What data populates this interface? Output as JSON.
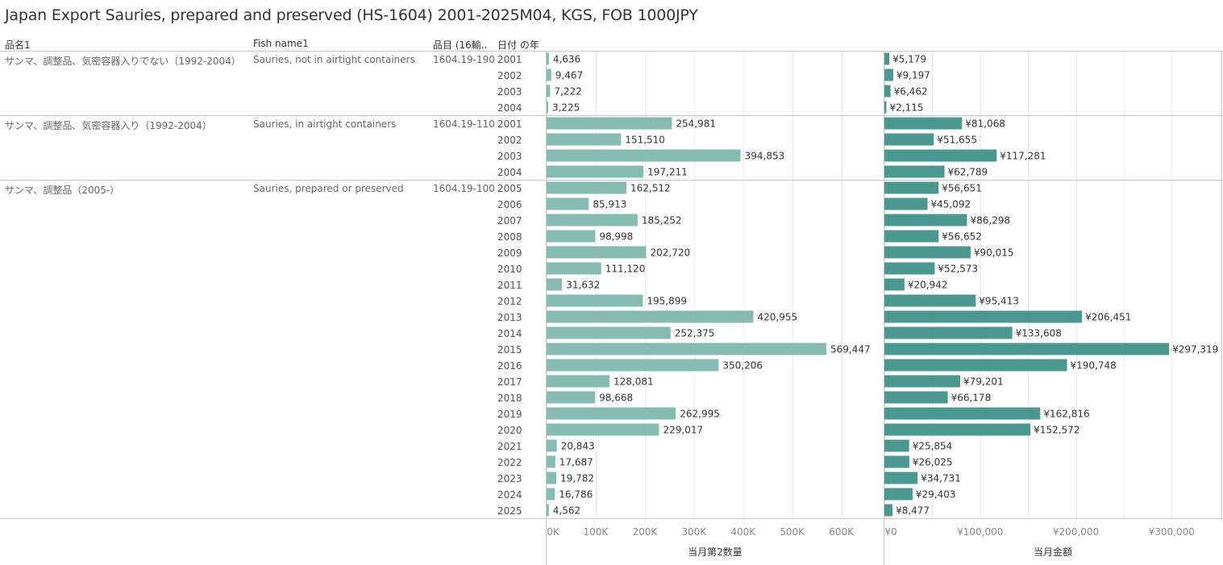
{
  "title": "Japan Export Sauries, prepared and preserved  (HS-1604) 2001-2025M04, KGS, FOB 1000JPY",
  "headers": {
    "name_jp": "品名1",
    "fish_name": "Fish name1",
    "code": "品目 (16輸..",
    "year": "日付 の年"
  },
  "colors": {
    "qty_bar": "#86bbb2",
    "value_bar": "#4a9890",
    "grid": "#ececec",
    "separator": "#c8c8c8"
  },
  "chart_data": {
    "type": "bar",
    "orientation": "horizontal",
    "groups": [
      {
        "name_jp": "サンマ、調整品、気密容器入りでない（1992-2004）",
        "fish_name": "Sauries, not in airtight containers",
        "code": "1604.19-190",
        "rows": [
          {
            "year": "2001",
            "qty": 4636,
            "qty_label": "4,636",
            "value": 5179,
            "value_label": "¥5,179"
          },
          {
            "year": "2002",
            "qty": 9467,
            "qty_label": "9,467",
            "value": 9197,
            "value_label": "¥9,197"
          },
          {
            "year": "2003",
            "qty": 7222,
            "qty_label": "7,222",
            "value": 6462,
            "value_label": "¥6,462"
          },
          {
            "year": "2004",
            "qty": 3225,
            "qty_label": "3,225",
            "value": 2115,
            "value_label": "¥2,115"
          }
        ]
      },
      {
        "name_jp": "サンマ、調整品、気密容器入り（1992-2004）",
        "fish_name": "Sauries, in airtight containers",
        "code": "1604.19-110",
        "rows": [
          {
            "year": "2001",
            "qty": 254981,
            "qty_label": "254,981",
            "value": 81068,
            "value_label": "¥81,068"
          },
          {
            "year": "2002",
            "qty": 151510,
            "qty_label": "151,510",
            "value": 51655,
            "value_label": "¥51,655"
          },
          {
            "year": "2003",
            "qty": 394853,
            "qty_label": "394,853",
            "value": 117281,
            "value_label": "¥117,281"
          },
          {
            "year": "2004",
            "qty": 197211,
            "qty_label": "197,211",
            "value": 62789,
            "value_label": "¥62,789"
          }
        ]
      },
      {
        "name_jp": "サンマ、調整品（2005-）",
        "fish_name": "Sauries, prepared or preserved",
        "code": "1604.19-100",
        "rows": [
          {
            "year": "2005",
            "qty": 162512,
            "qty_label": "162,512",
            "value": 56651,
            "value_label": "¥56,651"
          },
          {
            "year": "2006",
            "qty": 85913,
            "qty_label": "85,913",
            "value": 45092,
            "value_label": "¥45,092"
          },
          {
            "year": "2007",
            "qty": 185252,
            "qty_label": "185,252",
            "value": 86298,
            "value_label": "¥86,298"
          },
          {
            "year": "2008",
            "qty": 98998,
            "qty_label": "98,998",
            "value": 56652,
            "value_label": "¥56,652"
          },
          {
            "year": "2009",
            "qty": 202720,
            "qty_label": "202,720",
            "value": 90015,
            "value_label": "¥90,015"
          },
          {
            "year": "2010",
            "qty": 111120,
            "qty_label": "111,120",
            "value": 52573,
            "value_label": "¥52,573"
          },
          {
            "year": "2011",
            "qty": 31632,
            "qty_label": "31,632",
            "value": 20942,
            "value_label": "¥20,942"
          },
          {
            "year": "2012",
            "qty": 195899,
            "qty_label": "195,899",
            "value": 95413,
            "value_label": "¥95,413"
          },
          {
            "year": "2013",
            "qty": 420955,
            "qty_label": "420,955",
            "value": 206451,
            "value_label": "¥206,451"
          },
          {
            "year": "2014",
            "qty": 252375,
            "qty_label": "252,375",
            "value": 133608,
            "value_label": "¥133,608"
          },
          {
            "year": "2015",
            "qty": 569447,
            "qty_label": "569,447",
            "value": 297319,
            "value_label": "¥297,319"
          },
          {
            "year": "2016",
            "qty": 350206,
            "qty_label": "350,206",
            "value": 190748,
            "value_label": "¥190,748"
          },
          {
            "year": "2017",
            "qty": 128081,
            "qty_label": "128,081",
            "value": 79201,
            "value_label": "¥79,201"
          },
          {
            "year": "2018",
            "qty": 98668,
            "qty_label": "98,668",
            "value": 66178,
            "value_label": "¥66,178"
          },
          {
            "year": "2019",
            "qty": 262995,
            "qty_label": "262,995",
            "value": 162816,
            "value_label": "¥162,816"
          },
          {
            "year": "2020",
            "qty": 229017,
            "qty_label": "229,017",
            "value": 152572,
            "value_label": "¥152,572"
          },
          {
            "year": "2021",
            "qty": 20843,
            "qty_label": "20,843",
            "value": 25854,
            "value_label": "¥25,854"
          },
          {
            "year": "2022",
            "qty": 17687,
            "qty_label": "17,687",
            "value": 26025,
            "value_label": "¥26,025"
          },
          {
            "year": "2023",
            "qty": 19782,
            "qty_label": "19,782",
            "value": 34731,
            "value_label": "¥34,731"
          },
          {
            "year": "2024",
            "qty": 16786,
            "qty_label": "16,786",
            "value": 29403,
            "value_label": "¥29,403"
          },
          {
            "year": "2025",
            "qty": 4562,
            "qty_label": "4,562",
            "value": 8477,
            "value_label": "¥8,477"
          }
        ]
      }
    ],
    "qty_axis": {
      "title": "当月第2数量",
      "range": [
        0,
        686000
      ],
      "ticks": [
        0,
        100000,
        200000,
        300000,
        400000,
        500000,
        600000
      ],
      "tick_labels": [
        "0K",
        "100K",
        "200K",
        "300K",
        "400K",
        "500K",
        "600K"
      ]
    },
    "value_axis": {
      "title": "当月金額",
      "range": [
        0,
        352000
      ],
      "ticks": [
        0,
        50000,
        100000,
        150000,
        200000,
        250000,
        300000,
        350000
      ],
      "tick_labels": [
        "¥0",
        "¥100,000",
        "¥200,000",
        "¥300,000"
      ],
      "labeled_ticks": [
        0,
        100000,
        200000,
        300000
      ]
    },
    "grid": true
  }
}
